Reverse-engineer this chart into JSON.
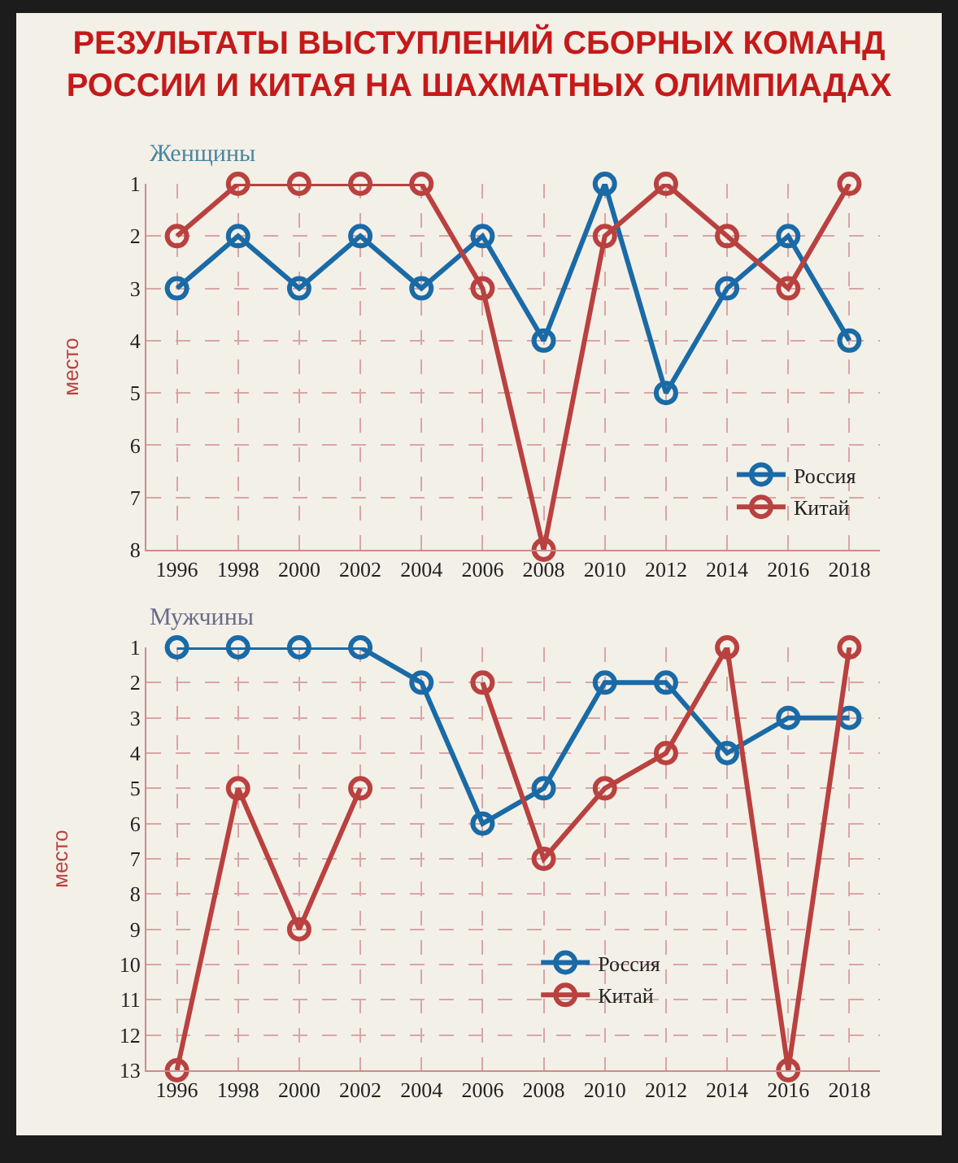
{
  "chart_data": [
    {
      "type": "line",
      "title": "РЕЗУЛЬТАТЫ ВЫСТУПЛЕНИЙ СБОРНЫХ КОМАНД\nРОССИИ И КИТАЯ НА ШАХМАТНЫХ ОЛИМПИАДАХ",
      "subtitle": "Женщины",
      "ylabel": "место",
      "categories": [
        "1996",
        "1998",
        "2000",
        "2002",
        "2004",
        "2006",
        "2008",
        "2010",
        "2012",
        "2014",
        "2016",
        "2018"
      ],
      "series": [
        {
          "name": "Россия",
          "color": "#1a6aa6",
          "values": [
            3,
            2,
            3,
            2,
            3,
            2,
            4,
            1,
            5,
            3,
            2,
            4
          ]
        },
        {
          "name": "Китай",
          "color": "#b9413f",
          "values": [
            2,
            1,
            1,
            1,
            1,
            3,
            8,
            2,
            1,
            2,
            3,
            1
          ]
        }
      ],
      "ylim": [
        8,
        1
      ],
      "yticks": [
        1,
        2,
        3,
        4,
        5,
        6,
        7,
        8
      ],
      "grid": true,
      "legend": "bottom right",
      "marker": "circle",
      "line_style": "solid"
    },
    {
      "type": "line",
      "subtitle": "Мужчины",
      "ylabel": "место",
      "categories": [
        "1996",
        "1998",
        "2000",
        "2002",
        "2004",
        "2006",
        "2008",
        "2010",
        "2012",
        "2014",
        "2016",
        "2018"
      ],
      "series": [
        {
          "name": "Россия",
          "color": "#1a6aa6",
          "values": [
            1,
            1,
            1,
            1,
            2,
            6,
            5,
            2,
            2,
            4,
            3,
            3
          ]
        },
        {
          "name": "Китай",
          "color": "#b9413f",
          "values": [
            13,
            5,
            9,
            5,
            null,
            2,
            7,
            5,
            4,
            1,
            13,
            1
          ]
        }
      ],
      "ylim": [
        13,
        1
      ],
      "yticks": [
        1,
        2,
        3,
        4,
        5,
        6,
        7,
        8,
        9,
        10,
        11,
        12,
        13
      ],
      "grid": true,
      "legend": "bottom",
      "marker": "circle",
      "line_style": "solid"
    }
  ]
}
